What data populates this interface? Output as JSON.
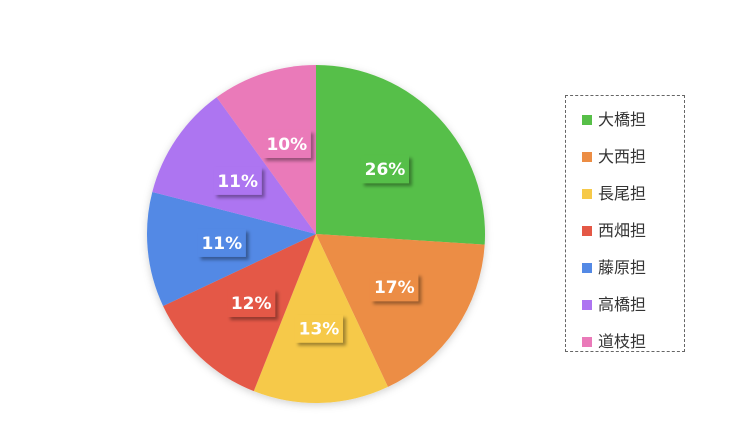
{
  "chart_data": {
    "type": "pie",
    "title": "",
    "categories": [
      "大橋担",
      "大西担",
      "長尾担",
      "西畑担",
      "藤原担",
      "高橋担",
      "道枝担"
    ],
    "values": [
      26,
      17,
      13,
      12,
      11,
      11,
      10
    ],
    "value_labels": [
      "26%",
      "17%",
      "13%",
      "12%",
      "11%",
      "11%",
      "10%"
    ],
    "colors": [
      "#57bf48",
      "#ec8d44",
      "#f6c949",
      "#e45846",
      "#5389e5",
      "#ad74f1",
      "#ea7ab9"
    ],
    "start_angle": "12 o'clock",
    "direction": "clockwise",
    "legend": {
      "position": "right",
      "border": "dashed"
    }
  }
}
